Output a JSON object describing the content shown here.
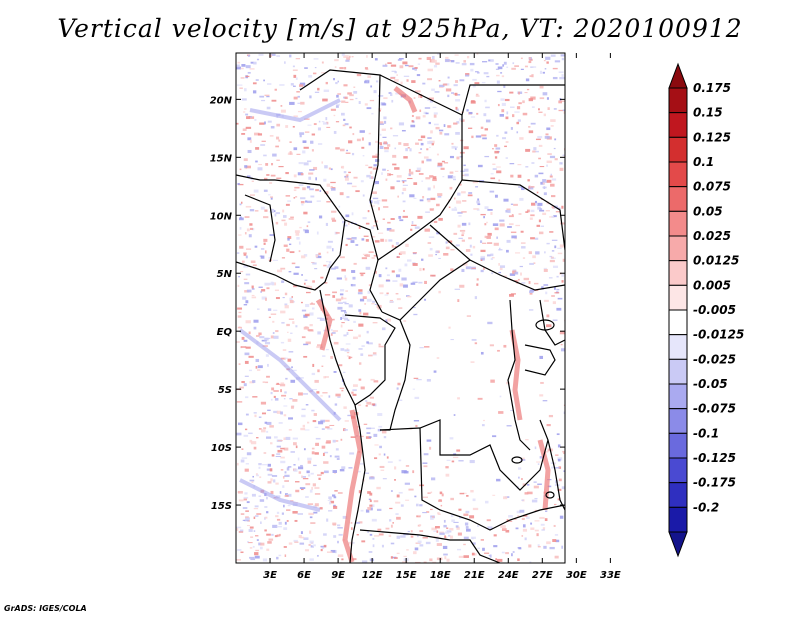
{
  "title": "Vertical velocity [m/s] at 925hPa, VT: 2020100912",
  "credit": "GrADS: IGES/COLA",
  "map": {
    "lat_range": [
      -20,
      24
    ],
    "lon_range": [
      0,
      29
    ],
    "lat_ticks": [
      {
        "value": 20,
        "label": "20N"
      },
      {
        "value": 15,
        "label": "15N"
      },
      {
        "value": 10,
        "label": "10N"
      },
      {
        "value": 5,
        "label": "5N"
      },
      {
        "value": 0,
        "label": "EQ"
      },
      {
        "value": -5,
        "label": "5S"
      },
      {
        "value": -10,
        "label": "10S"
      },
      {
        "value": -15,
        "label": "15S"
      }
    ],
    "lon_ticks": [
      {
        "value": 3,
        "label": "3E"
      },
      {
        "value": 6,
        "label": "6E"
      },
      {
        "value": 9,
        "label": "9E"
      },
      {
        "value": 12,
        "label": "12E"
      },
      {
        "value": 15,
        "label": "15E"
      },
      {
        "value": 18,
        "label": "18E"
      },
      {
        "value": 21,
        "label": "21E"
      },
      {
        "value": 24,
        "label": "24E"
      },
      {
        "value": 27,
        "label": "27E"
      },
      {
        "value": 30,
        "label": "30E"
      },
      {
        "value": 33,
        "label": "33E"
      }
    ]
  },
  "colorbar": {
    "bins": [
      {
        "label": "0.175",
        "color": "#a50f15"
      },
      {
        "label": "0.15",
        "color": "#c0171f"
      },
      {
        "label": "0.125",
        "color": "#d32f2f"
      },
      {
        "label": "0.1",
        "color": "#e34a4a"
      },
      {
        "label": "0.075",
        "color": "#ec6a6a"
      },
      {
        "label": "0.05",
        "color": "#f38b8b"
      },
      {
        "label": "0.025",
        "color": "#f7aaaa"
      },
      {
        "label": "0.0125",
        "color": "#fbcaca"
      },
      {
        "label": "0.005",
        "color": "#fde6e6"
      },
      {
        "label": "-0.005",
        "color": "#ffffff"
      },
      {
        "label": "-0.0125",
        "color": "#e6e6fb"
      },
      {
        "label": "-0.025",
        "color": "#cacaf5"
      },
      {
        "label": "-0.05",
        "color": "#aaaaf0"
      },
      {
        "label": "-0.075",
        "color": "#8b8be8"
      },
      {
        "label": "-0.1",
        "color": "#6a6ade"
      },
      {
        "label": "-0.125",
        "color": "#4a4ad2"
      },
      {
        "label": "-0.175",
        "color": "#2f2fc0"
      },
      {
        "label": "-0.2",
        "color": "#1a1aa8"
      }
    ],
    "top_arrow_color": "#8b0a0f",
    "bottom_arrow_color": "#14148c"
  }
}
